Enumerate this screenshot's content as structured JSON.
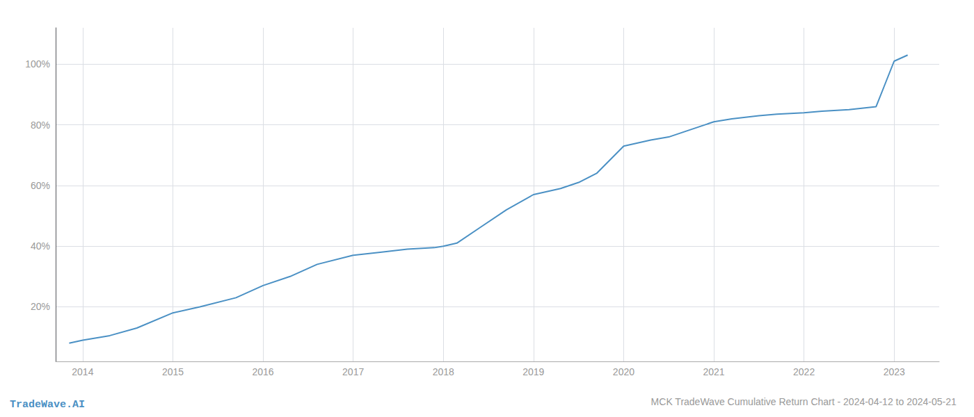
{
  "chart_data": {
    "type": "line",
    "title": "MCK TradeWave Cumulative Return Chart - 2024-04-12 to 2024-05-21",
    "annotations": [
      "TradeWave.AI"
    ],
    "x": [
      2013.85,
      2014.0,
      2014.3,
      2014.6,
      2015.0,
      2015.3,
      2015.7,
      2016.0,
      2016.3,
      2016.6,
      2017.0,
      2017.3,
      2017.6,
      2017.9,
      2018.0,
      2018.15,
      2018.4,
      2018.7,
      2019.0,
      2019.3,
      2019.5,
      2019.7,
      2020.0,
      2020.3,
      2020.5,
      2020.7,
      2021.0,
      2021.2,
      2021.5,
      2021.7,
      2022.0,
      2022.2,
      2022.5,
      2022.8,
      2023.0,
      2023.15
    ],
    "values": [
      8,
      9,
      10.5,
      13,
      18,
      20,
      23,
      27,
      30,
      34,
      37,
      38,
      39,
      39.5,
      40,
      41,
      46,
      52,
      57,
      59,
      61,
      64,
      73,
      75,
      76,
      78,
      81,
      82,
      83,
      83.5,
      84,
      84.5,
      85,
      86,
      101,
      103
    ],
    "color": "#4a90c4",
    "xlim": [
      2013.7,
      2023.5
    ],
    "ylim": [
      2,
      112
    ],
    "xticks": [
      2014,
      2015,
      2016,
      2017,
      2018,
      2019,
      2020,
      2021,
      2022,
      2023
    ],
    "yticks": [
      {
        "value": 20,
        "label": "20%"
      },
      {
        "value": 40,
        "label": "40%"
      },
      {
        "value": 60,
        "label": "60%"
      },
      {
        "value": 80,
        "label": "80%"
      },
      {
        "value": 100,
        "label": "100%"
      }
    ],
    "grid": true
  }
}
